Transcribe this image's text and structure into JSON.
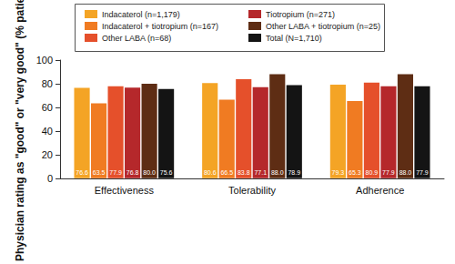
{
  "chart_data": {
    "type": "bar",
    "y_label": "Physician rating as \"good\" or \"very good\" (% patients)",
    "categories": [
      "Effectiveness",
      "Tolerability",
      "Adherence"
    ],
    "series": [
      {
        "name": "Indacaterol (n=1,179)",
        "color": "#f4a425",
        "values": [
          76.6,
          80.6,
          79.3
        ],
        "value_labels": [
          "76.6",
          "80.6",
          "79.3"
        ]
      },
      {
        "name": "Indacaterol + tiotropium (n=167)",
        "color": "#f07b22",
        "values": [
          63.5,
          66.5,
          65.3
        ],
        "value_labels": [
          "63.5",
          "66.5",
          "65.3"
        ]
      },
      {
        "name": "Other LABA (n=68)",
        "color": "#e5502b",
        "values": [
          77.9,
          83.8,
          80.9
        ],
        "value_labels": [
          "77.9",
          "83.8",
          "80.9"
        ]
      },
      {
        "name": "Tiotropium (n=271)",
        "color": "#b5282b",
        "values": [
          76.8,
          77.1,
          77.9
        ],
        "value_labels": [
          "76.8",
          "77.1",
          "77.9"
        ]
      },
      {
        "name": "Other LABA + tiotropium (n=25)",
        "color": "#5e2d14",
        "values": [
          80.0,
          88.0,
          88.0
        ],
        "value_labels": [
          "80.0",
          "88.0",
          "88.0"
        ]
      },
      {
        "name": "Total (N=1,710)",
        "color": "#141414",
        "values": [
          75.6,
          78.9,
          77.9
        ],
        "value_labels": [
          "75.6",
          "78.9",
          "77.9"
        ]
      }
    ],
    "ylim": [
      0,
      100
    ],
    "yticks": [
      0,
      20,
      40,
      60,
      80,
      100
    ],
    "grid": false,
    "legend": "top",
    "data_labels": true
  }
}
